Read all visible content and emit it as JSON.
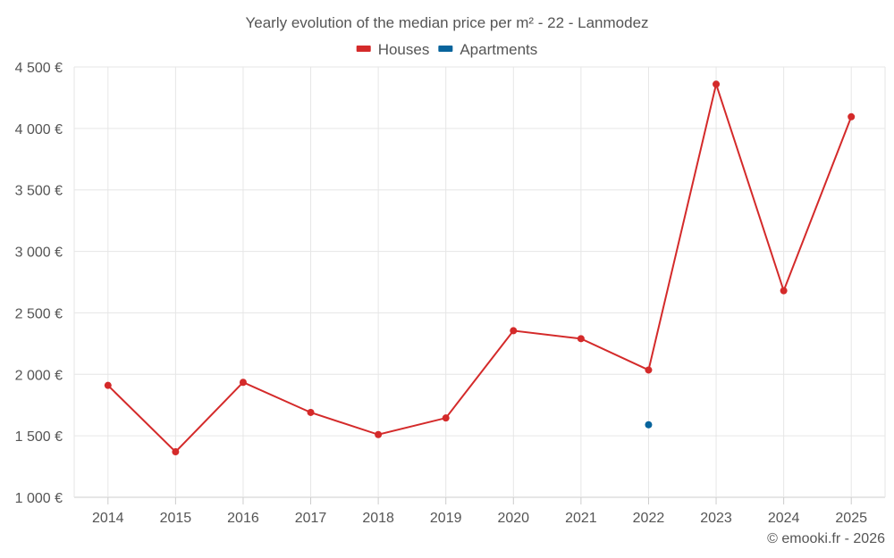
{
  "chart_data": {
    "type": "line",
    "title": "Yearly evolution of the median price per m² - 22 - Lanmodez",
    "categories": [
      "2014",
      "2015",
      "2016",
      "2017",
      "2018",
      "2019",
      "2020",
      "2021",
      "2022",
      "2023",
      "2024",
      "2025"
    ],
    "series": [
      {
        "name": "Houses",
        "color": "#d42a2a",
        "values": [
          1910,
          1370,
          1935,
          1690,
          1510,
          1645,
          2355,
          2290,
          2035,
          4360,
          2680,
          4095
        ]
      },
      {
        "name": "Apartments",
        "color": "#08649c",
        "values": [
          null,
          null,
          null,
          null,
          null,
          null,
          null,
          null,
          1590,
          null,
          null,
          null
        ]
      }
    ],
    "yticks": [
      "1 000 €",
      "1 500 €",
      "2 000 €",
      "2 500 €",
      "3 000 €",
      "3 500 €",
      "4 000 €",
      "4 500 €"
    ],
    "ytick_values": [
      1000,
      1500,
      2000,
      2500,
      3000,
      3500,
      4000,
      4500
    ],
    "ylim": [
      1000,
      4500
    ],
    "xlabel": "",
    "ylabel": "",
    "grid": true,
    "legend_position": "top-center"
  },
  "credit": "© emooki.fr - 2026"
}
